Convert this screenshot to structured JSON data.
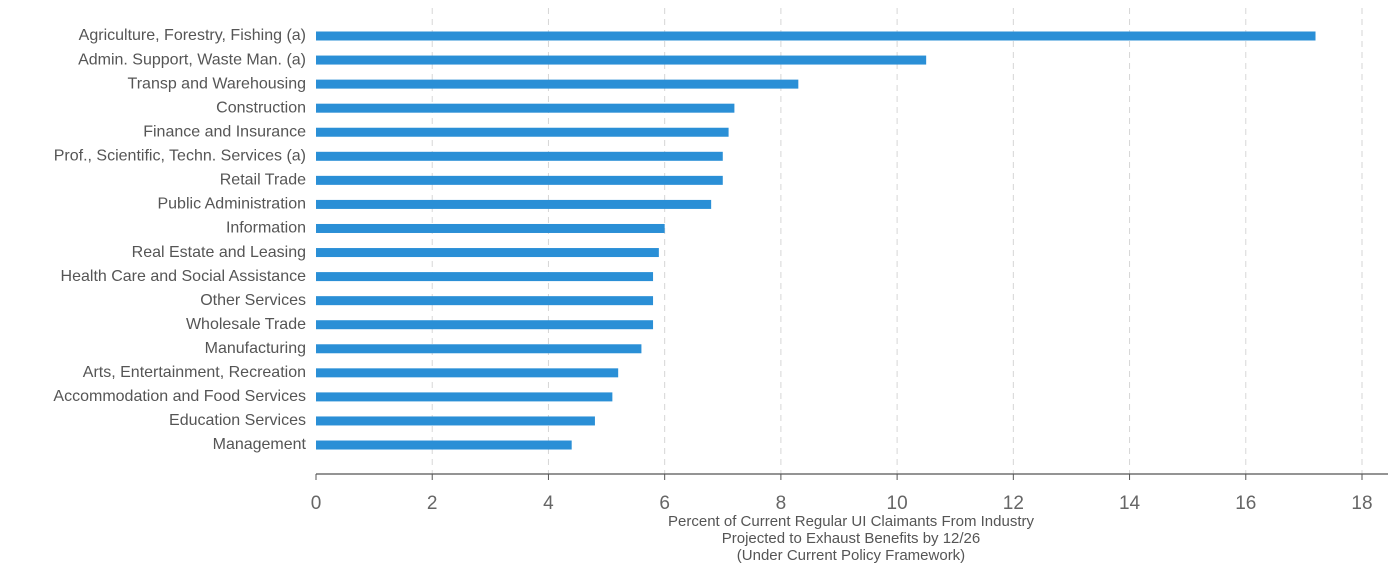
{
  "chart_data": {
    "type": "bar",
    "orientation": "horizontal",
    "categories": [
      "Agriculture, Forestry, Fishing (a)",
      "Admin. Support, Waste Man. (a)",
      "Transp and Warehousing",
      "Construction",
      "Finance and Insurance",
      "Prof., Scientific, Techn. Services (a)",
      "Retail Trade",
      "Public Administration",
      "Information",
      "Real Estate and Leasing",
      "Health Care and Social Assistance",
      "Other Services",
      "Wholesale Trade",
      "Manufacturing",
      "Arts, Entertainment, Recreation",
      "Accommodation and Food Services",
      "Education Services",
      "Management"
    ],
    "values": [
      17.2,
      10.5,
      8.3,
      7.2,
      7.1,
      7.0,
      7.0,
      6.8,
      6.0,
      5.9,
      5.8,
      5.8,
      5.8,
      5.6,
      5.2,
      5.1,
      4.8,
      4.4
    ],
    "color": "#2a8fd6",
    "xlim": [
      0,
      18
    ],
    "xticks": [
      0,
      2,
      4,
      6,
      8,
      10,
      12,
      14,
      16,
      18
    ],
    "grid": true,
    "xlabel": [
      "Percent of Current Regular UI Claimants From Industry",
      "Projected to Exhaust Benefits by 12/26",
      "(Under Current Policy Framework)"
    ]
  }
}
